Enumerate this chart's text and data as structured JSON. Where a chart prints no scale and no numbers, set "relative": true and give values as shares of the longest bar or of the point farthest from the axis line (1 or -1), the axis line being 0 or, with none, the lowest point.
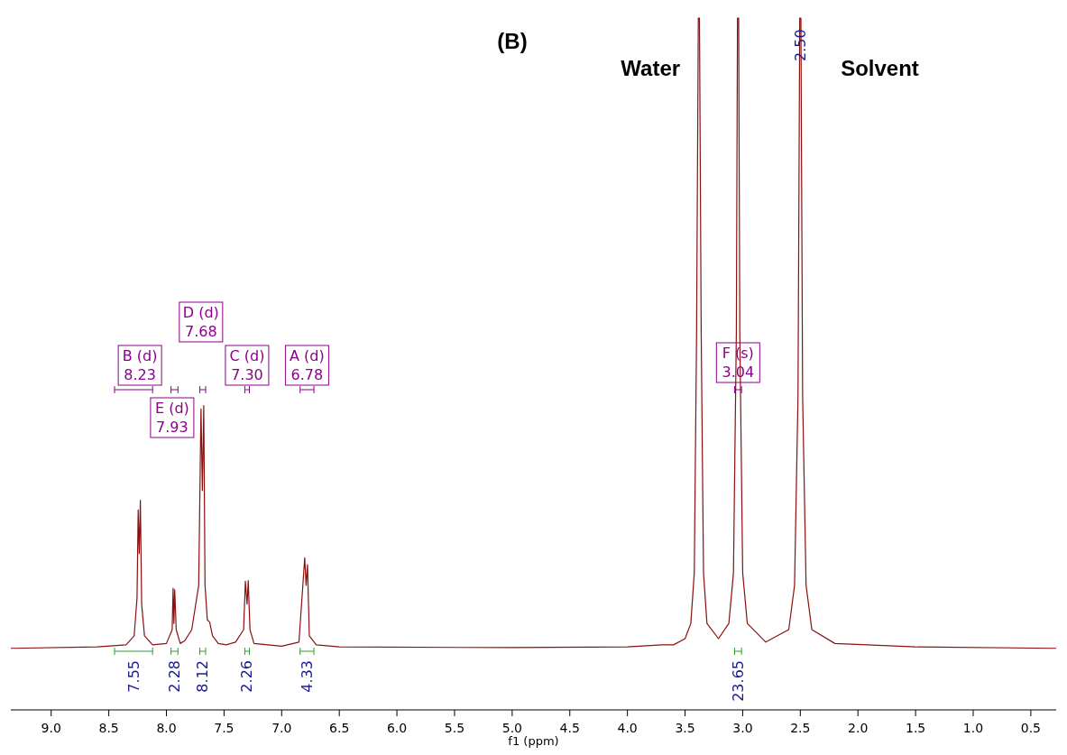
{
  "chart_data": {
    "type": "line",
    "title": "(B)",
    "xlabel": "f1 (ppm)",
    "relative": true,
    "xlim": [
      9.35,
      0.28
    ],
    "xticks": [
      {
        "value": 9,
        "label": "9.0"
      },
      8.5,
      {
        "value": 8,
        "label": "8.0"
      },
      7.5,
      {
        "value": 7,
        "label": "7.0"
      },
      6.5,
      {
        "value": 6,
        "label": "6.0"
      },
      5.5,
      {
        "value": 5,
        "label": "5.0"
      },
      4.5,
      {
        "value": 4,
        "label": "4.0"
      },
      3.5,
      {
        "value": 3,
        "label": "3.0"
      },
      2.5,
      {
        "value": 2,
        "label": "2.0"
      },
      1.5,
      {
        "value": 1,
        "label": "1.0"
      },
      0.5
    ],
    "series": [
      {
        "color": "#8b1010",
        "x": [
          9.35,
          8.6,
          8.35,
          8.28,
          8.255,
          8.245,
          8.236,
          8.226,
          8.215,
          8.19,
          8.12,
          8.0,
          7.95,
          7.942,
          7.935,
          7.928,
          7.915,
          7.88,
          7.84,
          7.78,
          7.72,
          7.7,
          7.688,
          7.676,
          7.665,
          7.645,
          7.625,
          7.6,
          7.55,
          7.48,
          7.4,
          7.33,
          7.315,
          7.3,
          7.29,
          7.275,
          7.24,
          7.0,
          6.85,
          6.8,
          6.788,
          6.776,
          6.76,
          6.7,
          6.5,
          5.0,
          4.0,
          3.7,
          3.6,
          3.5,
          3.45,
          3.42,
          3.4,
          3.385,
          3.375,
          3.36,
          3.34,
          3.31,
          3.21,
          3.12,
          3.08,
          3.055,
          3.045,
          3.035,
          3.025,
          3.0,
          2.96,
          2.8,
          2.6,
          2.55,
          2.52,
          2.505,
          2.495,
          2.48,
          2.45,
          2.4,
          2.2,
          1.5,
          0.28
        ],
        "values": [
          0.089,
          0.091,
          0.094,
          0.107,
          0.162,
          0.289,
          0.226,
          0.303,
          0.153,
          0.107,
          0.094,
          0.096,
          0.116,
          0.176,
          0.125,
          0.174,
          0.116,
          0.096,
          0.1,
          0.116,
          0.18,
          0.435,
          0.317,
          0.44,
          0.18,
          0.13,
          0.127,
          0.107,
          0.096,
          0.094,
          0.098,
          0.116,
          0.186,
          0.153,
          0.187,
          0.116,
          0.096,
          0.092,
          0.098,
          0.22,
          0.18,
          0.21,
          0.107,
          0.094,
          0.091,
          0.09,
          0.091,
          0.094,
          0.094,
          0.103,
          0.125,
          0.198,
          0.545,
          1,
          1,
          0.545,
          0.198,
          0.125,
          0.103,
          0.125,
          0.198,
          0.545,
          1,
          1,
          0.545,
          0.198,
          0.125,
          0.098,
          0.116,
          0.18,
          0.453,
          1,
          1,
          0.453,
          0.18,
          0.116,
          0.096,
          0.091,
          0.089
        ]
      }
    ],
    "annotations": [
      "Water",
      "Solvent",
      "2.50",
      "B (d)\n8.23",
      "E (d)\n7.93",
      "D (d)\n7.68",
      "C (d)\n7.30",
      "A (d)\n6.78",
      "F (s)\n3.04",
      "7.55",
      "2.28",
      "8.12",
      "2.26",
      "4.33",
      "23.65"
    ]
  }
}
